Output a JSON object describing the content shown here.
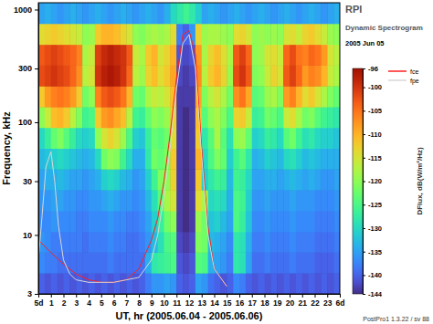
{
  "chart_data": {
    "type": "heatmap",
    "title": "RPI",
    "subtitle": "Dynamic Spectrogram",
    "annotations": [
      "2005 Jun 05",
      "PostPro1 1.3.22 / sv 88"
    ],
    "x_label": "UT, hr (2005.06.04 - 2005.06.06)",
    "y_label": "Frequency, kHz",
    "log": "y",
    "xlim": [
      0,
      24
    ],
    "ylim": [
      3,
      1150
    ],
    "xticks": [
      {
        "value": 0,
        "label": "5d"
      },
      1,
      2,
      3,
      4,
      5,
      6,
      7,
      8,
      9,
      10,
      11,
      12,
      13,
      14,
      15,
      16,
      17,
      18,
      19,
      20,
      21,
      22,
      23,
      {
        "value": 24,
        "label": "6d"
      }
    ],
    "yticks": [
      3,
      10,
      30,
      100,
      300,
      1000
    ],
    "x_edges": [
      0,
      0.5,
      1,
      1.5,
      2,
      2.5,
      3,
      3.5,
      4,
      4.5,
      5,
      5.5,
      6,
      6.5,
      7,
      7.5,
      8,
      8.5,
      9,
      9.5,
      10,
      10.5,
      11,
      11.5,
      12,
      12.5,
      13,
      13.5,
      14,
      14.5,
      15,
      15.5,
      16,
      16.5,
      17,
      17.5,
      18,
      18.5,
      19,
      19.5,
      20,
      20.5,
      21,
      21.5,
      22,
      22.5,
      23,
      23.5,
      24
    ],
    "y_edges": [
      3,
      4.59,
      7.02,
      10.7,
      16.4,
      25.1,
      38.4,
      58.7,
      89.8,
      137,
      210,
      321,
      491,
      752,
      1150
    ],
    "cells": [
      [
        -140,
        -141,
        -140,
        -141,
        -140,
        -141,
        -140,
        -141,
        -140,
        -141,
        -140,
        -141,
        -140,
        -141,
        -140,
        -141,
        -140,
        -138,
        -136,
        -136,
        -135,
        -136,
        -140,
        -141,
        -140,
        -135,
        -136,
        -139,
        -140,
        -141,
        -140,
        -137,
        -138,
        -140,
        -141,
        -140,
        -141,
        -140,
        -141,
        -140,
        -141,
        -140,
        -141,
        -140,
        -141,
        -140,
        -141,
        -140
      ],
      [
        -137,
        -138,
        -138,
        -139,
        -139,
        -139,
        -139,
        -139,
        -139,
        -139,
        -139,
        -138,
        -139,
        -139,
        -139,
        -139,
        -139,
        -134,
        -128,
        -127,
        -126,
        -125,
        -141,
        -142,
        -141,
        -124,
        -125,
        -134,
        -135,
        -136,
        -138,
        -128,
        -129,
        -135,
        -139,
        -139,
        -138,
        -139,
        -139,
        -139,
        -138,
        -139,
        -139,
        -139,
        -140,
        -140,
        -140,
        -139
      ],
      [
        -136,
        -137,
        -138,
        -138,
        -138,
        -138,
        -138,
        -139,
        -138,
        -138,
        -138,
        -137,
        -138,
        -138,
        -139,
        -139,
        -138,
        -136,
        -133,
        -129,
        -125,
        -124,
        -142,
        -143,
        -142,
        -121,
        -122,
        -133,
        -134,
        -135,
        -137,
        -128,
        -129,
        -134,
        -138,
        -138,
        -137,
        -138,
        -138,
        -138,
        -137,
        -138,
        -138,
        -138,
        -139,
        -139,
        -139,
        -138
      ],
      [
        -137,
        -137,
        -136,
        -137,
        -137,
        -137,
        -138,
        -138,
        -137,
        -137,
        -137,
        -136,
        -137,
        -137,
        -138,
        -138,
        -137,
        -135,
        -131,
        -127,
        -122,
        -120,
        -143,
        -144,
        -143,
        -119,
        -122,
        -132,
        -131,
        -133,
        -135,
        -125,
        -127,
        -132,
        -137,
        -137,
        -136,
        -137,
        -137,
        -137,
        -136,
        -137,
        -137,
        -137,
        -138,
        -138,
        -138,
        -137
      ],
      [
        -136,
        -136,
        -135,
        -135,
        -136,
        -136,
        -137,
        -137,
        -136,
        -136,
        -135,
        -134,
        -135,
        -136,
        -136,
        -137,
        -136,
        -133,
        -129,
        -124,
        -118,
        -115,
        -143,
        -144,
        -143,
        -114,
        -118,
        -130,
        -129,
        -130,
        -134,
        -125,
        -126,
        -131,
        -136,
        -136,
        -135,
        -136,
        -136,
        -136,
        -135,
        -136,
        -136,
        -136,
        -137,
        -137,
        -137,
        -136
      ],
      [
        -135,
        -134,
        -134,
        -133,
        -134,
        -135,
        -135,
        -136,
        -135,
        -134,
        -131,
        -130,
        -131,
        -133,
        -134,
        -136,
        -135,
        -131,
        -126,
        -121,
        -120,
        -113,
        -143,
        -144,
        -143,
        -112,
        -131,
        -128,
        -126,
        -127,
        -133,
        -126,
        -127,
        -130,
        -135,
        -135,
        -134,
        -134,
        -135,
        -134,
        -133,
        -134,
        -135,
        -134,
        -135,
        -136,
        -136,
        -135
      ],
      [
        -133,
        -132,
        -131,
        -130,
        -131,
        -132,
        -133,
        -134,
        -133,
        -130,
        -122,
        -120,
        -121,
        -126,
        -130,
        -134,
        -134,
        -128,
        -122,
        -123,
        -121,
        -112,
        -143,
        -144,
        -143,
        -110,
        -130,
        -125,
        -121,
        -123,
        -131,
        -126,
        -124,
        -128,
        -134,
        -133,
        -131,
        -132,
        -133,
        -130,
        -129,
        -131,
        -133,
        -132,
        -133,
        -134,
        -134,
        -134
      ],
      [
        -130,
        -127,
        -123,
        -121,
        -124,
        -127,
        -130,
        -131,
        -130,
        -120,
        -115,
        -113,
        -115,
        -119,
        -125,
        -131,
        -132,
        -127,
        -123,
        -124,
        -122,
        -114,
        -143,
        -144,
        -143,
        -112,
        -128,
        -124,
        -118,
        -124,
        -129,
        -120,
        -119,
        -123,
        -131,
        -130,
        -127,
        -128,
        -130,
        -124,
        -122,
        -126,
        -129,
        -128,
        -130,
        -131,
        -131,
        -132
      ],
      [
        -120,
        -116,
        -111,
        -110,
        -112,
        -117,
        -121,
        -126,
        -125,
        -112,
        -108,
        -107,
        -109,
        -111,
        -117,
        -126,
        -127,
        -123,
        -120,
        -121,
        -119,
        -113,
        -143,
        -144,
        -143,
        -111,
        -124,
        -120,
        -118,
        -121,
        -125,
        -113,
        -112,
        -116,
        -127,
        -126,
        -122,
        -123,
        -125,
        -116,
        -114,
        -118,
        -122,
        -121,
        -124,
        -126,
        -127,
        -128
      ],
      [
        -112,
        -108,
        -106,
        -105,
        -106,
        -108,
        -112,
        -122,
        -120,
        -106,
        -103,
        -102,
        -103,
        -105,
        -110,
        -122,
        -123,
        -118,
        -116,
        -117,
        -115,
        -111,
        -143,
        -143,
        -143,
        -109,
        -121,
        -117,
        -115,
        -118,
        -122,
        -107,
        -105,
        -109,
        -124,
        -123,
        -119,
        -118,
        -121,
        -108,
        -106,
        -110,
        -114,
        -112,
        -115,
        -118,
        -121,
        -123
      ],
      [
        -102,
        -101,
        -100,
        -101,
        -102,
        -104,
        -107,
        -117,
        -115,
        -100,
        -98,
        -97,
        -98,
        -100,
        -104,
        -117,
        -119,
        -113,
        -111,
        -114,
        -112,
        -109,
        -142,
        -143,
        -142,
        -107,
        -117,
        -112,
        -110,
        -113,
        -119,
        -102,
        -100,
        -103,
        -121,
        -120,
        -116,
        -113,
        -115,
        -103,
        -101,
        -104,
        -108,
        -106,
        -107,
        -110,
        -116,
        -118
      ],
      [
        -103,
        -102,
        -101,
        -102,
        -103,
        -104,
        -106,
        -118,
        -116,
        -101,
        -99,
        -98,
        -99,
        -100,
        -103,
        -116,
        -118,
        -112,
        -110,
        -115,
        -113,
        -110,
        -141,
        -142,
        -141,
        -108,
        -118,
        -113,
        -111,
        -114,
        -118,
        -103,
        -101,
        -104,
        -120,
        -119,
        -115,
        -114,
        -116,
        -104,
        -102,
        -105,
        -106,
        -104,
        -105,
        -108,
        -115,
        -117
      ],
      [
        -114,
        -113,
        -112,
        -113,
        -114,
        -115,
        -116,
        -120,
        -119,
        -112,
        -110,
        -110,
        -111,
        -113,
        -115,
        -120,
        -121,
        -119,
        -118,
        -119,
        -118,
        -114,
        -138,
        -140,
        -136,
        -113,
        -119,
        -118,
        -118,
        -119,
        -120,
        -114,
        -113,
        -115,
        -120,
        -119,
        -120,
        -119,
        -120,
        -115,
        -114,
        -116,
        -113,
        -112,
        -114,
        -116,
        -119,
        -120
      ],
      [
        -135,
        -134,
        -135,
        -136,
        -135,
        -134,
        -135,
        -136,
        -135,
        -134,
        -135,
        -136,
        -135,
        -134,
        -135,
        -136,
        -135,
        -134,
        -135,
        -136,
        -134,
        -130,
        -128,
        -126,
        -128,
        -131,
        -135,
        -134,
        -135,
        -136,
        -135,
        -134,
        -135,
        -136,
        -135,
        -134,
        -135,
        -136,
        -135,
        -134,
        -135,
        -136,
        -135,
        -134,
        -135,
        -136,
        -135,
        -134
      ]
    ],
    "colorbar": {
      "range": [
        -144,
        -96
      ],
      "ticks": [
        -96,
        -100,
        -105,
        -110,
        -115,
        -120,
        -125,
        -130,
        -135,
        -140,
        -144
      ],
      "label": "DFlux, dB(W/m²/Hz)"
    },
    "legend": "top-right",
    "series": [
      {
        "name": "fce",
        "color": "#ff2020",
        "type": "line",
        "x": [
          0,
          1,
          2,
          3,
          4,
          5,
          6,
          7,
          8,
          9,
          9.5,
          10,
          10.5,
          11,
          11.5,
          12,
          12.5,
          13,
          13.5,
          14,
          15
        ],
        "values": [
          9,
          7,
          5.5,
          4.5,
          4,
          3.8,
          3.8,
          4,
          5,
          9,
          14,
          30,
          80,
          250,
          600,
          650,
          400,
          60,
          12,
          5,
          3.5
        ]
      },
      {
        "name": "fpe",
        "color": "#d8d8d8",
        "type": "line",
        "x": [
          0,
          0.3,
          0.6,
          1,
          1.3,
          1.6,
          2,
          2.5,
          3,
          4,
          6,
          8,
          9,
          9.5,
          10,
          10.5,
          11,
          11.5,
          12,
          12.5,
          13,
          13.5,
          14,
          15
        ],
        "values": [
          6,
          15,
          40,
          55,
          30,
          12,
          6,
          4.5,
          4,
          3.8,
          3.8,
          4.2,
          6,
          10,
          22,
          60,
          200,
          500,
          600,
          300,
          50,
          10,
          5,
          3.5
        ]
      }
    ]
  }
}
